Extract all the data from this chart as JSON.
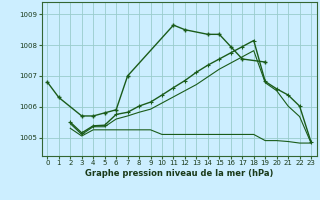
{
  "title": "Graphe pression niveau de la mer (hPa)",
  "bg_color": "#cceeff",
  "grid_color": "#99cccc",
  "line_color": "#1a5c1a",
  "ylim": [
    1004.4,
    1009.4
  ],
  "xlim": [
    -0.5,
    23.5
  ],
  "yticks": [
    1005,
    1006,
    1007,
    1008,
    1009
  ],
  "xticks": [
    0,
    1,
    2,
    3,
    4,
    5,
    6,
    7,
    8,
    9,
    10,
    11,
    12,
    13,
    14,
    15,
    16,
    17,
    18,
    19,
    20,
    21,
    22,
    23
  ],
  "s1_x": [
    0,
    1,
    3,
    4,
    5,
    6,
    7,
    11,
    12,
    14,
    15,
    16,
    17,
    19
  ],
  "s1_y": [
    1006.8,
    1006.3,
    1005.7,
    1005.7,
    1005.8,
    1005.9,
    1007.0,
    1008.65,
    1008.5,
    1008.35,
    1008.35,
    1007.95,
    1007.55,
    1007.45
  ],
  "s2_x": [
    2,
    3,
    4,
    5,
    6,
    7,
    8,
    9,
    10,
    11,
    12,
    13,
    14,
    15,
    16,
    17,
    18,
    19,
    20,
    21,
    22,
    23
  ],
  "s2_y": [
    1005.5,
    1005.15,
    1005.38,
    1005.4,
    1005.75,
    1005.82,
    1006.02,
    1006.15,
    1006.38,
    1006.62,
    1006.85,
    1007.12,
    1007.35,
    1007.55,
    1007.75,
    1007.95,
    1008.15,
    1006.82,
    1006.58,
    1006.38,
    1006.02,
    1004.85
  ],
  "s3_x": [
    2,
    3,
    4,
    5,
    6,
    7,
    8,
    9,
    10,
    11,
    12,
    13,
    14,
    15,
    16,
    17,
    18,
    19,
    20,
    21,
    22,
    23
  ],
  "s3_y": [
    1005.45,
    1005.1,
    1005.35,
    1005.35,
    1005.6,
    1005.7,
    1005.82,
    1005.92,
    1006.12,
    1006.32,
    1006.52,
    1006.72,
    1006.97,
    1007.22,
    1007.42,
    1007.62,
    1007.82,
    1006.78,
    1006.52,
    1006.02,
    1005.68,
    1004.82
  ],
  "s4_x": [
    2,
    3,
    4,
    5,
    6,
    7,
    8,
    9,
    10,
    11,
    12,
    13,
    14,
    15,
    16,
    17,
    18,
    19,
    20,
    21,
    22,
    23
  ],
  "s4_y": [
    1005.3,
    1005.05,
    1005.25,
    1005.25,
    1005.25,
    1005.25,
    1005.25,
    1005.25,
    1005.1,
    1005.1,
    1005.1,
    1005.1,
    1005.1,
    1005.1,
    1005.1,
    1005.1,
    1005.1,
    1004.9,
    1004.9,
    1004.87,
    1004.82,
    1004.82
  ]
}
